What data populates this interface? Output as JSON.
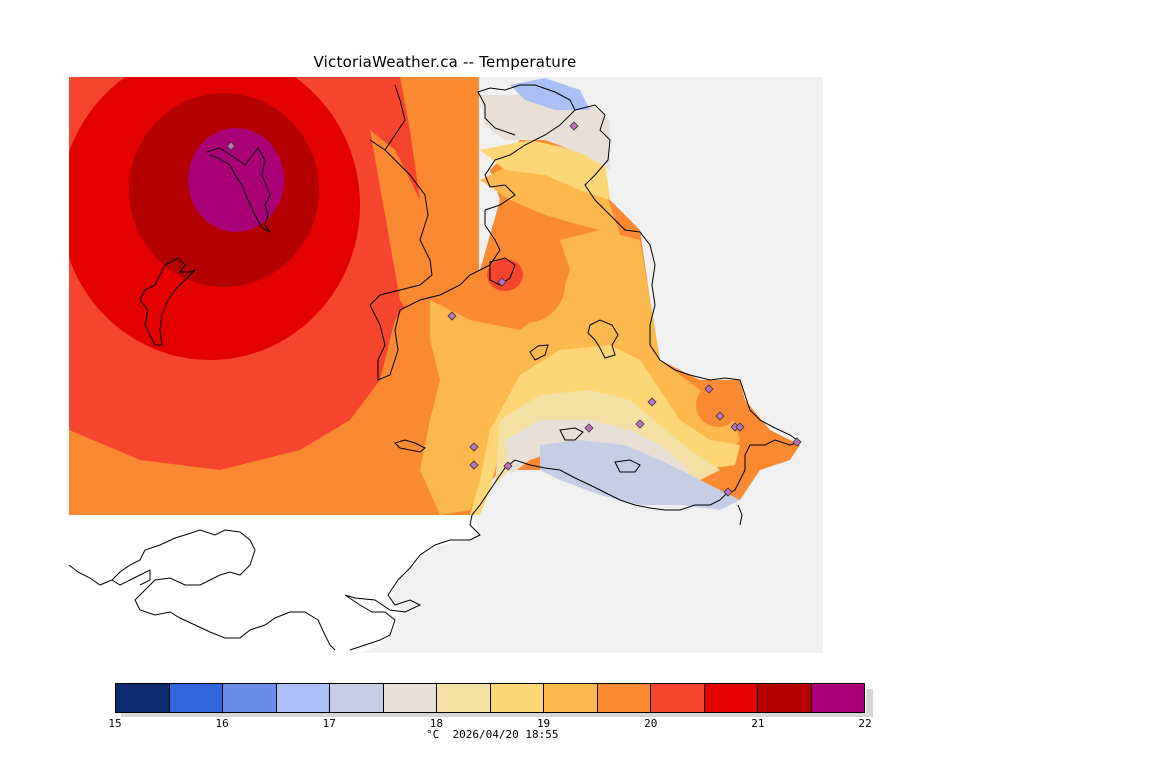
{
  "title": "VictoriaWeather.ca -- Temperature",
  "colorbar": {
    "ticks": [
      "15",
      "16",
      "17",
      "18",
      "19",
      "20",
      "21",
      "22"
    ],
    "colors": [
      "#0b2a6f",
      "#3366dd",
      "#6a8ee8",
      "#a9bff6",
      "#c8cde6",
      "#e8e0d6",
      "#f4dfa4",
      "#fcd776",
      "#fbb84c",
      "#fa8a32",
      "#f6452f",
      "#e30000",
      "#b30000",
      "#aa0077"
    ],
    "unit": "°C",
    "timestamp": "2026/04/20 18:55"
  },
  "map": {
    "variable": "Temperature",
    "range_celsius": [
      15,
      22
    ],
    "hot_center_value": 22,
    "cool_region_value": 17,
    "land_color": "#f0f0f0",
    "station_marker_color": "#c070c0"
  }
}
